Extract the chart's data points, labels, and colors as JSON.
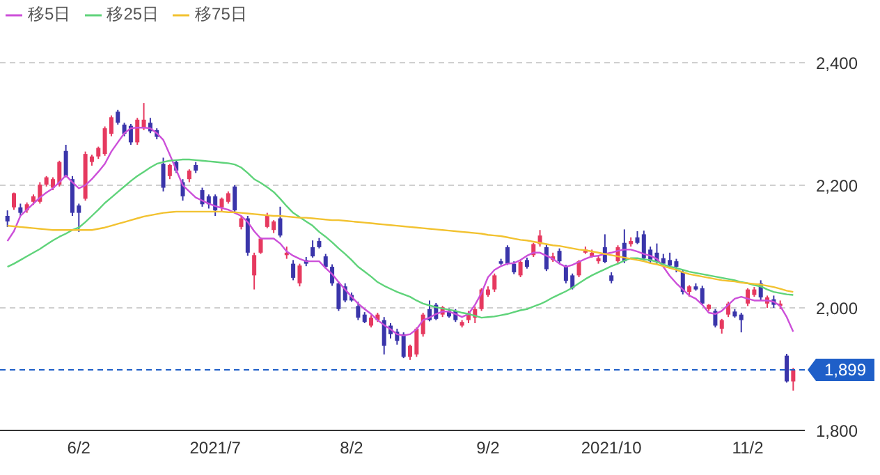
{
  "chart_data": {
    "type": "candlestick",
    "categories": [
      null,
      null,
      null,
      null,
      null,
      null,
      null,
      null,
      null,
      null,
      null,
      "6/2",
      null,
      null,
      null,
      null,
      null,
      null,
      null,
      null,
      null,
      null,
      null,
      null,
      null,
      null,
      null,
      null,
      null,
      null,
      null,
      null,
      "2021/7",
      null,
      null,
      null,
      null,
      null,
      null,
      null,
      null,
      null,
      null,
      null,
      null,
      null,
      null,
      null,
      null,
      null,
      null,
      null,
      null,
      "8/2",
      null,
      null,
      null,
      null,
      null,
      null,
      null,
      null,
      null,
      null,
      null,
      null,
      null,
      null,
      null,
      null,
      null,
      null,
      null,
      null,
      "9/2",
      null,
      null,
      null,
      null,
      null,
      null,
      null,
      null,
      null,
      null,
      null,
      null,
      null,
      null,
      null,
      null,
      null,
      null,
      "2021/10",
      null,
      null,
      null,
      null,
      null,
      null,
      null,
      null,
      null,
      null,
      null,
      null,
      null,
      null,
      null,
      null,
      null,
      null,
      null,
      null,
      "11/2",
      null,
      null,
      null,
      null,
      null,
      null,
      null
    ],
    "ylim": [
      1800,
      2400
    ],
    "yticks": [
      {
        "value": 1800,
        "label": "1,800"
      },
      {
        "value": 2000,
        "label": "2,000"
      },
      {
        "value": 2200,
        "label": "2,200"
      },
      {
        "value": 2400,
        "label": "2,400"
      }
    ],
    "grid": "y",
    "legend": "top left",
    "ref_lines": [
      {
        "axis": "y",
        "value": 1899,
        "label": "1,899",
        "color": "#1f5fc8",
        "line_style": "dashed"
      }
    ],
    "series": [
      {
        "ohlc": [
          [
            2150,
            2159,
            2132,
            2141
          ],
          [
            2164,
            2188,
            2160,
            2187
          ],
          [
            2164,
            2170,
            2150,
            2155
          ],
          [
            2159,
            2172,
            2155,
            2169
          ],
          [
            2173,
            2185,
            2168,
            2182
          ],
          [
            2173,
            2205,
            2170,
            2201
          ],
          [
            2201,
            2215,
            2198,
            2213
          ],
          [
            2196,
            2213,
            2192,
            2210
          ],
          [
            2201,
            2240,
            2198,
            2238
          ],
          [
            2256,
            2266,
            2213,
            2215
          ],
          [
            2210,
            2215,
            2150,
            2155
          ],
          [
            2167,
            2170,
            2124,
            2155
          ],
          [
            2178,
            2255,
            2175,
            2251
          ],
          [
            2238,
            2250,
            2232,
            2247
          ],
          [
            2247,
            2263,
            2243,
            2261
          ],
          [
            2251,
            2296,
            2248,
            2293
          ],
          [
            2284,
            2314,
            2280,
            2311
          ],
          [
            2320,
            2323,
            2299,
            2302
          ],
          [
            2299,
            2302,
            2280,
            2284
          ],
          [
            2297,
            2300,
            2266,
            2270
          ],
          [
            2270,
            2310,
            2266,
            2307
          ],
          [
            2293,
            2334,
            2290,
            2307
          ],
          [
            2302,
            2310,
            2285,
            2288
          ],
          [
            2290,
            2293,
            2275,
            2279
          ],
          [
            2235,
            2245,
            2190,
            2196
          ],
          [
            2215,
            2235,
            2210,
            2233
          ],
          [
            2238,
            2242,
            2220,
            2224
          ],
          [
            2205,
            2210,
            2175,
            2182
          ],
          [
            2210,
            2226,
            2205,
            2224
          ],
          [
            2233,
            2238,
            2220,
            2224
          ],
          [
            2192,
            2196,
            2165,
            2169
          ],
          [
            2182,
            2185,
            2162,
            2169
          ],
          [
            2182,
            2185,
            2150,
            2159
          ],
          [
            2164,
            2180,
            2158,
            2178
          ],
          [
            2173,
            2190,
            2170,
            2187
          ],
          [
            2198,
            2200,
            2155,
            2159
          ],
          [
            2132,
            2150,
            2128,
            2146
          ],
          [
            2146,
            2150,
            2085,
            2090
          ],
          [
            2053,
            2090,
            2030,
            2086
          ],
          [
            2090,
            2115,
            2088,
            2113
          ],
          [
            2132,
            2155,
            2130,
            2150
          ],
          [
            2127,
            2143,
            2122,
            2141
          ],
          [
            2146,
            2165,
            2115,
            2118
          ],
          [
            2086,
            2100,
            2080,
            2090
          ],
          [
            2072,
            2078,
            2045,
            2049
          ],
          [
            2040,
            2072,
            2035,
            2069
          ],
          [
            2078,
            2083,
            2068,
            2072
          ],
          [
            2099,
            2110,
            2082,
            2084
          ],
          [
            2109,
            2114,
            2097,
            2099
          ],
          [
            2084,
            2088,
            2064,
            2067
          ],
          [
            2067,
            2071,
            2036,
            2040
          ],
          [
            2040,
            2043,
            1995,
            1998
          ],
          [
            2035,
            2040,
            2009,
            2012
          ],
          [
            2021,
            2025,
            2010,
            2012
          ],
          [
            2003,
            2010,
            1980,
            1984
          ],
          [
            1989,
            1993,
            1975,
            1977
          ],
          [
            1971,
            1988,
            1968,
            1984
          ],
          [
            1980,
            1992,
            1977,
            1989
          ],
          [
            1980,
            1985,
            1924,
            1938
          ],
          [
            1971,
            1975,
            1950,
            1957
          ],
          [
            1961,
            1966,
            1940,
            1946
          ],
          [
            1957,
            1960,
            1918,
            1920
          ],
          [
            1920,
            1940,
            1915,
            1938
          ],
          [
            1924,
            1968,
            1920,
            1966
          ],
          [
            1957,
            1992,
            1953,
            1989
          ],
          [
            1998,
            2012,
            1978,
            1980
          ],
          [
            2005,
            2008,
            1980,
            1982
          ],
          [
            1989,
            2003,
            1985,
            2001
          ],
          [
            1995,
            1999,
            1984,
            1986
          ],
          [
            1995,
            1998,
            1977,
            1980
          ],
          [
            1971,
            1980,
            1968,
            1977
          ],
          [
            1980,
            1995,
            1975,
            1992
          ],
          [
            1984,
            2002,
            1975,
            1998
          ],
          [
            1998,
            2032,
            1995,
            2030
          ],
          [
            2021,
            2035,
            2018,
            2030
          ],
          [
            2030,
            2056,
            2026,
            2053
          ],
          [
            2076,
            2080,
            2070,
            2072
          ],
          [
            2099,
            2102,
            2070,
            2072
          ],
          [
            2072,
            2076,
            2055,
            2058
          ],
          [
            2053,
            2078,
            2050,
            2075
          ],
          [
            2078,
            2082,
            2064,
            2067
          ],
          [
            2086,
            2106,
            2083,
            2104
          ],
          [
            2104,
            2127,
            2100,
            2118
          ],
          [
            2099,
            2103,
            2060,
            2063
          ],
          [
            2078,
            2090,
            2075,
            2084
          ],
          [
            2093,
            2097,
            2073,
            2076
          ],
          [
            2067,
            2070,
            2040,
            2044
          ],
          [
            2053,
            2056,
            2030,
            2032
          ],
          [
            2053,
            2078,
            2050,
            2076
          ],
          [
            2090,
            2100,
            2088,
            2095
          ],
          [
            2084,
            2095,
            2082,
            2090
          ],
          [
            2076,
            2086,
            2072,
            2081
          ],
          [
            2099,
            2120,
            2073,
            2075
          ],
          [
            2053,
            2058,
            2040,
            2044
          ],
          [
            2076,
            2102,
            2073,
            2099
          ],
          [
            2106,
            2128,
            2073,
            2076
          ],
          [
            2104,
            2115,
            2100,
            2109
          ],
          [
            2115,
            2125,
            2104,
            2106
          ],
          [
            2120,
            2126,
            2078,
            2081
          ],
          [
            2095,
            2100,
            2073,
            2076
          ],
          [
            2090,
            2105,
            2072,
            2075
          ],
          [
            2081,
            2088,
            2070,
            2072
          ],
          [
            2078,
            2090,
            2065,
            2069
          ],
          [
            2076,
            2080,
            2058,
            2067
          ],
          [
            2058,
            2062,
            2022,
            2026
          ],
          [
            2026,
            2037,
            2018,
            2035
          ],
          [
            2035,
            2040,
            2028,
            2030
          ],
          [
            2032,
            2036,
            2005,
            2007
          ],
          [
            1998,
            2006,
            1995,
            2005
          ],
          [
            1995,
            1998,
            1968,
            1971
          ],
          [
            1966,
            1982,
            1958,
            1980
          ],
          [
            1989,
            2010,
            1985,
            2007
          ],
          [
            1994,
            1998,
            1984,
            1986
          ],
          [
            1989,
            1992,
            1960,
            1980
          ],
          [
            2007,
            2032,
            2003,
            2030
          ],
          [
            2021,
            2034,
            2018,
            2030
          ],
          [
            2040,
            2045,
            2012,
            2017
          ],
          [
            2007,
            2020,
            2000,
            2017
          ],
          [
            2014,
            2020,
            2000,
            2005
          ],
          [
            2003,
            2012,
            1998,
            2007
          ],
          [
            1922,
            1925,
            1878,
            1880
          ],
          [
            1880,
            1902,
            1865,
            1899
          ]
        ],
        "colors": [
          "#3a35aa",
          "#e6395f",
          "#3a35aa",
          "#e6395f",
          "#e6395f",
          "#e6395f",
          "#e6395f",
          "#e6395f",
          "#e6395f",
          "#3a35aa",
          "#3a35aa",
          "#3a35aa",
          "#e6395f",
          "#e6395f",
          "#e6395f",
          "#e6395f",
          "#e6395f",
          "#3a35aa",
          "#3a35aa",
          "#3a35aa",
          "#e6395f",
          "#e6395f",
          "#3a35aa",
          "#3a35aa",
          "#3a35aa",
          "#e6395f",
          "#3a35aa",
          "#3a35aa",
          "#e6395f",
          "#3a35aa",
          "#3a35aa",
          "#3a35aa",
          "#3a35aa",
          "#e6395f",
          "#e6395f",
          "#3a35aa",
          "#e6395f",
          "#3a35aa",
          "#e6395f",
          "#e6395f",
          "#e6395f",
          "#e6395f",
          "#3a35aa",
          "#e6395f",
          "#3a35aa",
          "#e6395f",
          "#3a35aa",
          "#3a35aa",
          "#3a35aa",
          "#3a35aa",
          "#3a35aa",
          "#3a35aa",
          "#3a35aa",
          "#3a35aa",
          "#3a35aa",
          "#3a35aa",
          "#e6395f",
          "#e6395f",
          "#3a35aa",
          "#3a35aa",
          "#3a35aa",
          "#3a35aa",
          "#e6395f",
          "#e6395f",
          "#e6395f",
          "#3a35aa",
          "#3a35aa",
          "#e6395f",
          "#3a35aa",
          "#3a35aa",
          "#e6395f",
          "#e6395f",
          "#e6395f",
          "#e6395f",
          "#e6395f",
          "#e6395f",
          "#3a35aa",
          "#3a35aa",
          "#3a35aa",
          "#e6395f",
          "#3a35aa",
          "#e6395f",
          "#e6395f",
          "#3a35aa",
          "#e6395f",
          "#3a35aa",
          "#3a35aa",
          "#3a35aa",
          "#e6395f",
          "#e6395f",
          "#e6395f",
          "#e6395f",
          "#3a35aa",
          "#3a35aa",
          "#e6395f",
          "#3a35aa",
          "#e6395f",
          "#3a35aa",
          "#3a35aa",
          "#3a35aa",
          "#3a35aa",
          "#3a35aa",
          "#3a35aa",
          "#3a35aa",
          "#3a35aa",
          "#e6395f",
          "#3a35aa",
          "#3a35aa",
          "#e6395f",
          "#3a35aa",
          "#e6395f",
          "#e6395f",
          "#3a35aa",
          "#3a35aa",
          "#e6395f",
          "#e6395f",
          "#3a35aa",
          "#e6395f",
          "#3a35aa",
          "#e6395f",
          "#3a35aa",
          "#e6395f"
        ]
      },
      {
        "type": "line",
        "name": "移5日",
        "color": "#cc4fd9",
        "values": [
          2109,
          2125,
          2150,
          2160,
          2170,
          2180,
          2188,
          2195,
          2205,
          2216,
          2205,
          2195,
          2200,
          2210,
          2222,
          2235,
          2255,
          2270,
          2285,
          2293,
          2294,
          2294,
          2293,
          2285,
          2274,
          2250,
          2225,
          2200,
          2190,
          2180,
          2175,
          2170,
          2166,
          2163,
          2160,
          2155,
          2150,
          2140,
          2125,
          2113,
          2113,
          2113,
          2105,
          2092,
          2085,
          2080,
          2076,
          2076,
          2076,
          2065,
          2055,
          2042,
          2030,
          2018,
          2007,
          1998,
          1990,
          1980,
          1972,
          1965,
          1957,
          1955,
          1957,
          1965,
          1980,
          1984,
          1990,
          1994,
          1994,
          1990,
          1985,
          1990,
          2005,
          2024,
          2050,
          2062,
          2068,
          2072,
          2073,
          2078,
          2085,
          2090,
          2090,
          2085,
          2080,
          2072,
          2067,
          2070,
          2075,
          2080,
          2084,
          2085,
          2088,
          2090,
          2093,
          2095,
          2095,
          2092,
          2088,
          2085,
          2080,
          2067,
          2052,
          2040,
          2030,
          2020,
          2015,
          2005,
          1992,
          1990,
          1995,
          2005,
          2015,
          2018,
          2015,
          2012,
          2012,
          2012,
          2010,
          2003,
          1985,
          1961
        ]
      },
      {
        "type": "line",
        "name": "移25日",
        "color": "#5fd37a",
        "values": [
          2067,
          2072,
          2078,
          2084,
          2090,
          2096,
          2103,
          2110,
          2116,
          2121,
          2127,
          2131,
          2140,
          2150,
          2160,
          2171,
          2180,
          2189,
          2198,
          2207,
          2215,
          2222,
          2229,
          2235,
          2238,
          2240,
          2241,
          2242,
          2242,
          2241,
          2240,
          2239,
          2238,
          2237,
          2236,
          2234,
          2229,
          2220,
          2210,
          2204,
          2197,
          2189,
          2178,
          2166,
          2155,
          2148,
          2141,
          2134,
          2124,
          2116,
          2107,
          2097,
          2088,
          2078,
          2067,
          2059,
          2051,
          2042,
          2036,
          2031,
          2026,
          2022,
          2018,
          2012,
          2007,
          2004,
          2001,
          1999,
          1997,
          1995,
          1992,
          1990,
          1987,
          1984,
          1985,
          1986,
          1988,
          1990,
          1993,
          1996,
          1998,
          2002,
          2006,
          2011,
          2017,
          2022,
          2027,
          2033,
          2040,
          2047,
          2053,
          2058,
          2063,
          2068,
          2072,
          2077,
          2081,
          2081,
          2079,
          2078,
          2075,
          2071,
          2067,
          2065,
          2062,
          2059,
          2057,
          2055,
          2053,
          2051,
          2049,
          2047,
          2045,
          2042,
          2040,
          2037,
          2035,
          2030,
          2026,
          2024,
          2022,
          2021
        ]
      },
      {
        "type": "line",
        "name": "移75日",
        "color": "#f2c230",
        "values": [
          2134,
          2133,
          2132,
          2131,
          2130,
          2129,
          2128,
          2127,
          2127,
          2127,
          2127,
          2127,
          2127,
          2127,
          2129,
          2131,
          2134,
          2137,
          2140,
          2143,
          2146,
          2149,
          2151,
          2153,
          2155,
          2156,
          2157,
          2157,
          2157,
          2157,
          2157,
          2157,
          2157,
          2157,
          2156,
          2156,
          2155,
          2154,
          2153,
          2152,
          2151,
          2150,
          2150,
          2149,
          2148,
          2147,
          2147,
          2146,
          2145,
          2144,
          2143,
          2143,
          2142,
          2141,
          2140,
          2139,
          2138,
          2137,
          2136,
          2135,
          2134,
          2133,
          2132,
          2131,
          2130,
          2129,
          2128,
          2127,
          2126,
          2125,
          2124,
          2123,
          2122,
          2121,
          2119,
          2118,
          2117,
          2115,
          2113,
          2111,
          2110,
          2108,
          2106,
          2104,
          2102,
          2101,
          2099,
          2097,
          2095,
          2094,
          2092,
          2090,
          2088,
          2086,
          2084,
          2082,
          2080,
          2078,
          2076,
          2073,
          2071,
          2068,
          2065,
          2062,
          2058,
          2055,
          2053,
          2051,
          2049,
          2047,
          2045,
          2044,
          2043,
          2041,
          2040,
          2039,
          2038,
          2036,
          2034,
          2031,
          2028,
          2026
        ]
      }
    ]
  }
}
